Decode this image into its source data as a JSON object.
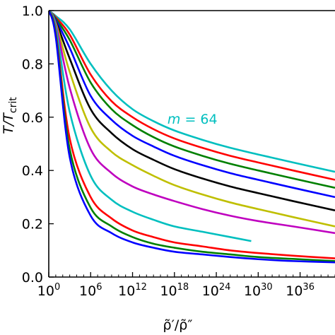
{
  "chart_data": {
    "type": "line",
    "title": "",
    "xlabel": "ρ̃′/ρ̃″",
    "ylabel": "T/T",
    "ylabel_sub": "crit",
    "xscale": "log10",
    "xlim": [
      1,
      1e+41
    ],
    "ylim": [
      0.0,
      1.0
    ],
    "grid": false,
    "x_ticks": [
      {
        "value": 1,
        "base": "10",
        "exp": "0"
      },
      {
        "value": 1000000.0,
        "base": "10",
        "exp": "6"
      },
      {
        "value": 1000000000000.0,
        "base": "10",
        "exp": "12"
      },
      {
        "value": 1e+18,
        "base": "10",
        "exp": "18"
      },
      {
        "value": 1e+24,
        "base": "10",
        "exp": "24"
      },
      {
        "value": 1e+30,
        "base": "10",
        "exp": "30"
      },
      {
        "value": 1e+36,
        "base": "10",
        "exp": "36"
      }
    ],
    "y_ticks": [
      {
        "value": 0.0,
        "label": "0.0"
      },
      {
        "value": 0.2,
        "label": "0.2"
      },
      {
        "value": 0.4,
        "label": "0.4"
      },
      {
        "value": 0.6,
        "label": "0.6"
      },
      {
        "value": 0.8,
        "label": "0.8"
      },
      {
        "value": 1.0,
        "label": "1.0"
      }
    ],
    "annotation": {
      "var": "m",
      "eq": " = 64",
      "x": 1e+17,
      "y": 0.575,
      "color": "#00bfbf"
    },
    "series": [
      {
        "color": "#00bfbf",
        "x": [
          1,
          10.0,
          1000.0,
          1000000.0,
          1000000000.0,
          1000000000000.0,
          1000000000000000.0,
          1e+18,
          1e+22,
          1e+26,
          1e+30,
          1e+35,
          1e+41
        ],
        "y": [
          1.0,
          0.98,
          0.93,
          0.8,
          0.7,
          0.63,
          0.585,
          0.55,
          0.515,
          0.485,
          0.46,
          0.43,
          0.395
        ]
      },
      {
        "color": "#ff0000",
        "x": [
          1,
          10.0,
          1000.0,
          1000000.0,
          1000000000.0,
          1000000000000.0,
          1000000000000000.0,
          1e+18,
          1e+22,
          1e+26,
          1e+30,
          1e+35,
          1e+41
        ],
        "y": [
          1.0,
          0.975,
          0.91,
          0.76,
          0.66,
          0.6,
          0.555,
          0.52,
          0.485,
          0.455,
          0.43,
          0.4,
          0.365
        ]
      },
      {
        "color": "#008000",
        "x": [
          1,
          10.0,
          1000.0,
          1000000.0,
          1000000000.0,
          1000000000000.0,
          1000000000000000.0,
          1e+18,
          1e+22,
          1e+26,
          1e+30,
          1e+35,
          1e+41
        ],
        "y": [
          1.0,
          0.97,
          0.89,
          0.73,
          0.63,
          0.57,
          0.525,
          0.49,
          0.455,
          0.425,
          0.4,
          0.37,
          0.335
        ]
      },
      {
        "color": "#0000ff",
        "x": [
          1,
          10.0,
          1000.0,
          1000000.0,
          1000000000.0,
          1000000000000.0,
          1000000000000000.0,
          1e+18,
          1e+22,
          1e+26,
          1e+30,
          1e+35,
          1e+41
        ],
        "y": [
          1.0,
          0.965,
          0.86,
          0.68,
          0.59,
          0.53,
          0.49,
          0.455,
          0.42,
          0.39,
          0.365,
          0.335,
          0.3
        ]
      },
      {
        "color": "#000000",
        "x": [
          1,
          10.0,
          1000.0,
          1000000.0,
          1000000000.0,
          1000000000000.0,
          1000000000000000.0,
          1e+18,
          1e+22,
          1e+26,
          1e+30,
          1e+35,
          1e+41
        ],
        "y": [
          1.0,
          0.96,
          0.82,
          0.63,
          0.54,
          0.48,
          0.44,
          0.405,
          0.37,
          0.34,
          0.315,
          0.285,
          0.25
        ]
      },
      {
        "color": "#bfbf00",
        "x": [
          1,
          10.0,
          1000.0,
          1000000.0,
          1000000000.0,
          1000000000000.0,
          1000000000000000.0,
          1e+18,
          1e+22,
          1e+26,
          1e+30,
          1e+35,
          1e+41
        ],
        "y": [
          1.0,
          0.955,
          0.77,
          0.56,
          0.47,
          0.42,
          0.38,
          0.345,
          0.31,
          0.28,
          0.255,
          0.225,
          0.19
        ]
      },
      {
        "color": "#bf00bf",
        "x": [
          1,
          10.0,
          1000.0,
          1000000.0,
          1000000000.0,
          1000000000000.0,
          1000000000000000.0,
          1e+18,
          1e+22,
          1e+26,
          1e+30,
          1e+35,
          1e+41
        ],
        "y": [
          1.0,
          0.95,
          0.71,
          0.48,
          0.39,
          0.34,
          0.31,
          0.285,
          0.255,
          0.23,
          0.21,
          0.19,
          0.165
        ]
      },
      {
        "color": "#00bfbf",
        "x": [
          1,
          10.0,
          1000.0,
          1000000.0,
          1000000000.0,
          1000000000000.0,
          1000000000000000.0,
          1e+18,
          1e+22,
          1e+26,
          1e+29
        ],
        "y": [
          1.0,
          0.94,
          0.62,
          0.38,
          0.29,
          0.245,
          0.215,
          0.19,
          0.17,
          0.15,
          0.135
        ]
      },
      {
        "color": "#ff0000",
        "x": [
          1,
          10.0,
          1000.0,
          1000000.0,
          1000000000.0,
          1000000000000.0,
          1000000000000000.0,
          1e+18,
          1e+22,
          1e+26,
          1e+30,
          1e+35,
          1e+41
        ],
        "y": [
          1.0,
          0.92,
          0.52,
          0.3,
          0.22,
          0.175,
          0.15,
          0.13,
          0.115,
          0.1,
          0.09,
          0.08,
          0.07
        ]
      },
      {
        "color": "#008000",
        "x": [
          1,
          10.0,
          1000.0,
          1000000.0,
          1000000000.0,
          1000000000000.0,
          1000000000000000.0,
          1e+18,
          1e+22,
          1e+26,
          1e+30,
          1e+35,
          1e+41
        ],
        "y": [
          1.0,
          0.91,
          0.48,
          0.26,
          0.19,
          0.15,
          0.125,
          0.11,
          0.095,
          0.085,
          0.075,
          0.068,
          0.06
        ]
      },
      {
        "color": "#0000ff",
        "x": [
          1,
          10.0,
          1000.0,
          1000000.0,
          1000000000.0,
          1000000000000.0,
          1000000000000000.0,
          1e+18,
          1e+22,
          1e+26,
          1e+30,
          1e+35,
          1e+41
        ],
        "y": [
          1.0,
          0.9,
          0.45,
          0.23,
          0.165,
          0.13,
          0.11,
          0.095,
          0.085,
          0.075,
          0.067,
          0.06,
          0.055
        ]
      }
    ]
  }
}
